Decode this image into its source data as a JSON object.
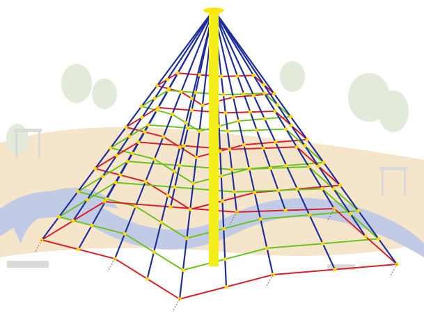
{
  "image": {
    "subject": "pyramid-rope-climbing-net",
    "background_subject": "faded-playground-park",
    "colors": {
      "mast": "#f4ee1a",
      "mast_cap": "#ffe600",
      "main_ropes": "#1e2f9c",
      "ring_red": "#d8202a",
      "ring_green": "#6cc21e",
      "connector": "#ffd700",
      "path": "#bcc6e4",
      "sand": "#f3e3c6",
      "grass": "#eef2ea",
      "tree": "#dfe8d6",
      "bench": "#d6d6d2"
    }
  }
}
